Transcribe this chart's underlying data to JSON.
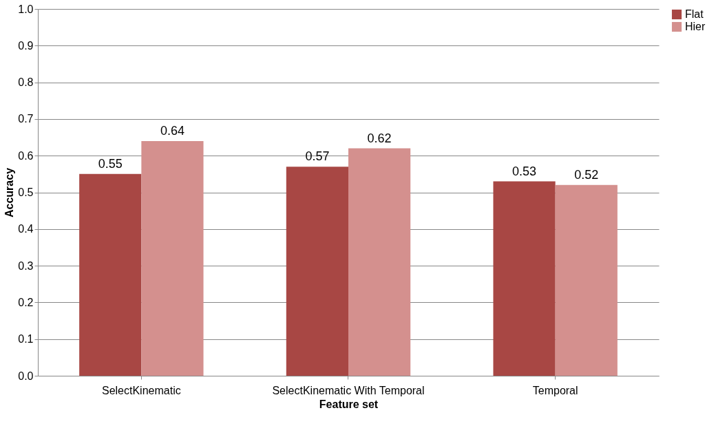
{
  "chart_data": {
    "type": "bar",
    "xlabel": "Feature set",
    "ylabel": "Accuracy",
    "categories": [
      "SelectKinematic",
      "SelectKinematic With Temporal",
      "Temporal"
    ],
    "series": [
      {
        "name": "Flat",
        "color": "#a84744",
        "values": [
          0.55,
          0.57,
          0.53
        ]
      },
      {
        "name": "Hier",
        "color": "#d4908e",
        "values": [
          0.64,
          0.62,
          0.52
        ]
      }
    ],
    "ylim": [
      0,
      1
    ],
    "yticks": [
      {
        "value": 0,
        "label": "0.0"
      },
      {
        "value": 0.1,
        "label": "0.1"
      },
      {
        "value": 0.2,
        "label": "0.2"
      },
      {
        "value": 0.3,
        "label": "0.3"
      },
      {
        "value": 0.4,
        "label": "0.4"
      },
      {
        "value": 0.5,
        "label": "0.5"
      },
      {
        "value": 0.6,
        "label": "0.6"
      },
      {
        "value": 0.7,
        "label": "0.7"
      },
      {
        "value": 0.8,
        "label": "0.8"
      },
      {
        "value": 0.9,
        "label": "0.9"
      },
      {
        "value": 1,
        "label": "1.0"
      }
    ],
    "grid": "y",
    "legend": "right",
    "data_labels": true
  }
}
